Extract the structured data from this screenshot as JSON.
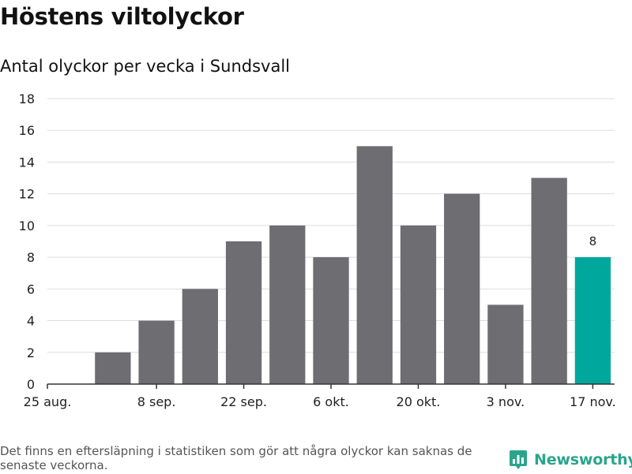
{
  "title": "Höstens viltolyckor",
  "subtitle": "Antal olyckor per vecka i Sundsvall",
  "footnote": "Det finns en eftersläpning i statistiken som gör att några olyckor kan saknas de senaste veckorna.",
  "brand": {
    "name": "Newsworthy",
    "icon": "bar-chart-logo-icon",
    "color": "#2aa58d"
  },
  "colors": {
    "bar": "#6e6d72",
    "highlight": "#00a79d",
    "grid": "#dddddd",
    "axis": "#333333"
  },
  "chart_data": {
    "type": "bar",
    "title": "Höstens viltolyckor",
    "subtitle": "Antal olyckor per vecka i Sundsvall",
    "categories": [
      "2024-08-25",
      "2024-09-01",
      "2024-09-08",
      "2024-09-15",
      "2024-09-22",
      "2024-09-29",
      "2024-10-06",
      "2024-10-13",
      "2024-10-20",
      "2024-10-27",
      "2024-11-03",
      "2024-11-10",
      "2024-11-17"
    ],
    "values": [
      null,
      2,
      4,
      6,
      9,
      10,
      8,
      15,
      10,
      12,
      5,
      13,
      8
    ],
    "highlight_index": 12,
    "data_labels": [
      {
        "index": 12,
        "text": "8"
      }
    ],
    "ylim": [
      0,
      18
    ],
    "yticks": [
      0,
      2,
      4,
      6,
      8,
      10,
      12,
      14,
      16,
      18
    ],
    "xticks": [
      {
        "index": 0,
        "label": "25 aug."
      },
      {
        "index": 2,
        "label": "8 sep."
      },
      {
        "index": 4,
        "label": "22 sep."
      },
      {
        "index": 6,
        "label": "6 okt."
      },
      {
        "index": 8,
        "label": "20 okt."
      },
      {
        "index": 10,
        "label": "3 nov."
      },
      {
        "index": 12,
        "label": "17 nov."
      }
    ],
    "xlabel": "",
    "ylabel": "",
    "grid": true,
    "legend": "none"
  }
}
